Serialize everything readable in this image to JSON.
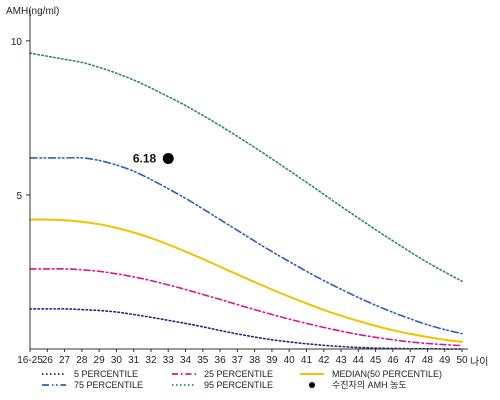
{
  "chart_data": {
    "type": "line",
    "ylabel": "AMH(ng/ml)",
    "xlabel": "나이",
    "ylim": [
      0,
      11
    ],
    "yticks": [
      5,
      10
    ],
    "categories": [
      "16-25",
      "26",
      "27",
      "28",
      "29",
      "30",
      "31",
      "32",
      "33",
      "34",
      "35",
      "36",
      "37",
      "38",
      "39",
      "40",
      "41",
      "42",
      "43",
      "44",
      "45",
      "46",
      "47",
      "48",
      "49",
      "50"
    ],
    "series": [
      {
        "name": "5 PERCENTILE",
        "color": "#1a237e",
        "dash": "dot",
        "values": [
          1.3,
          1.3,
          1.3,
          1.28,
          1.25,
          1.2,
          1.12,
          1.03,
          0.93,
          0.83,
          0.72,
          0.6,
          0.49,
          0.39,
          0.3,
          0.23,
          0.17,
          0.12,
          0.08,
          0.05,
          0.03,
          0.02,
          0.01,
          0.01,
          0.0,
          0.0
        ]
      },
      {
        "name": "25 PERCENTILE",
        "color": "#d6188a",
        "dash": "dashdot",
        "values": [
          2.6,
          2.6,
          2.6,
          2.57,
          2.52,
          2.44,
          2.34,
          2.22,
          2.08,
          1.93,
          1.77,
          1.61,
          1.44,
          1.28,
          1.12,
          0.97,
          0.83,
          0.7,
          0.58,
          0.47,
          0.38,
          0.3,
          0.23,
          0.18,
          0.14,
          0.11
        ]
      },
      {
        "name": "MEDIAN(50 PERCENTILE)",
        "color": "#f2c200",
        "dash": "solid",
        "values": [
          4.2,
          4.2,
          4.18,
          4.13,
          4.05,
          3.93,
          3.78,
          3.6,
          3.39,
          3.16,
          2.92,
          2.67,
          2.42,
          2.17,
          1.93,
          1.7,
          1.48,
          1.27,
          1.08,
          0.91,
          0.75,
          0.61,
          0.49,
          0.39,
          0.3,
          0.23
        ]
      },
      {
        "name": "75 PERCENTILE",
        "color": "#2e5bbd",
        "dash": "dashdotdot",
        "values": [
          6.2,
          6.2,
          6.2,
          6.2,
          6.12,
          5.97,
          5.77,
          5.5,
          5.2,
          4.89,
          4.55,
          4.2,
          3.85,
          3.5,
          3.16,
          2.84,
          2.52,
          2.22,
          1.94,
          1.67,
          1.42,
          1.19,
          0.98,
          0.79,
          0.63,
          0.5
        ]
      },
      {
        "name": "95 PERCENTILE",
        "color": "#2e8b57",
        "dash": "dot",
        "values": [
          9.6,
          9.5,
          9.4,
          9.3,
          9.14,
          8.95,
          8.73,
          8.47,
          8.19,
          7.9,
          7.58,
          7.25,
          6.9,
          6.54,
          6.17,
          5.79,
          5.41,
          5.02,
          4.63,
          4.25,
          3.87,
          3.51,
          3.15,
          2.81,
          2.5,
          2.2
        ]
      }
    ],
    "points": [
      {
        "name": "수진자의 AMH 농도",
        "x": "33",
        "y": 6.18,
        "label": "6.18",
        "color": "#000000"
      }
    ],
    "legend": {
      "placement": "bottom",
      "items": [
        {
          "label": "5 PERCENTILE",
          "series": 0
        },
        {
          "label": "25 PERCENTILE",
          "series": 1
        },
        {
          "label": "MEDIAN(50 PERCENTILE)",
          "series": 2
        },
        {
          "label": "75 PERCENTILE",
          "series": 3
        },
        {
          "label": "95 PERCENTILE",
          "series": 4
        },
        {
          "label": "수진자의 AMH 농도",
          "point": 0
        }
      ]
    }
  }
}
